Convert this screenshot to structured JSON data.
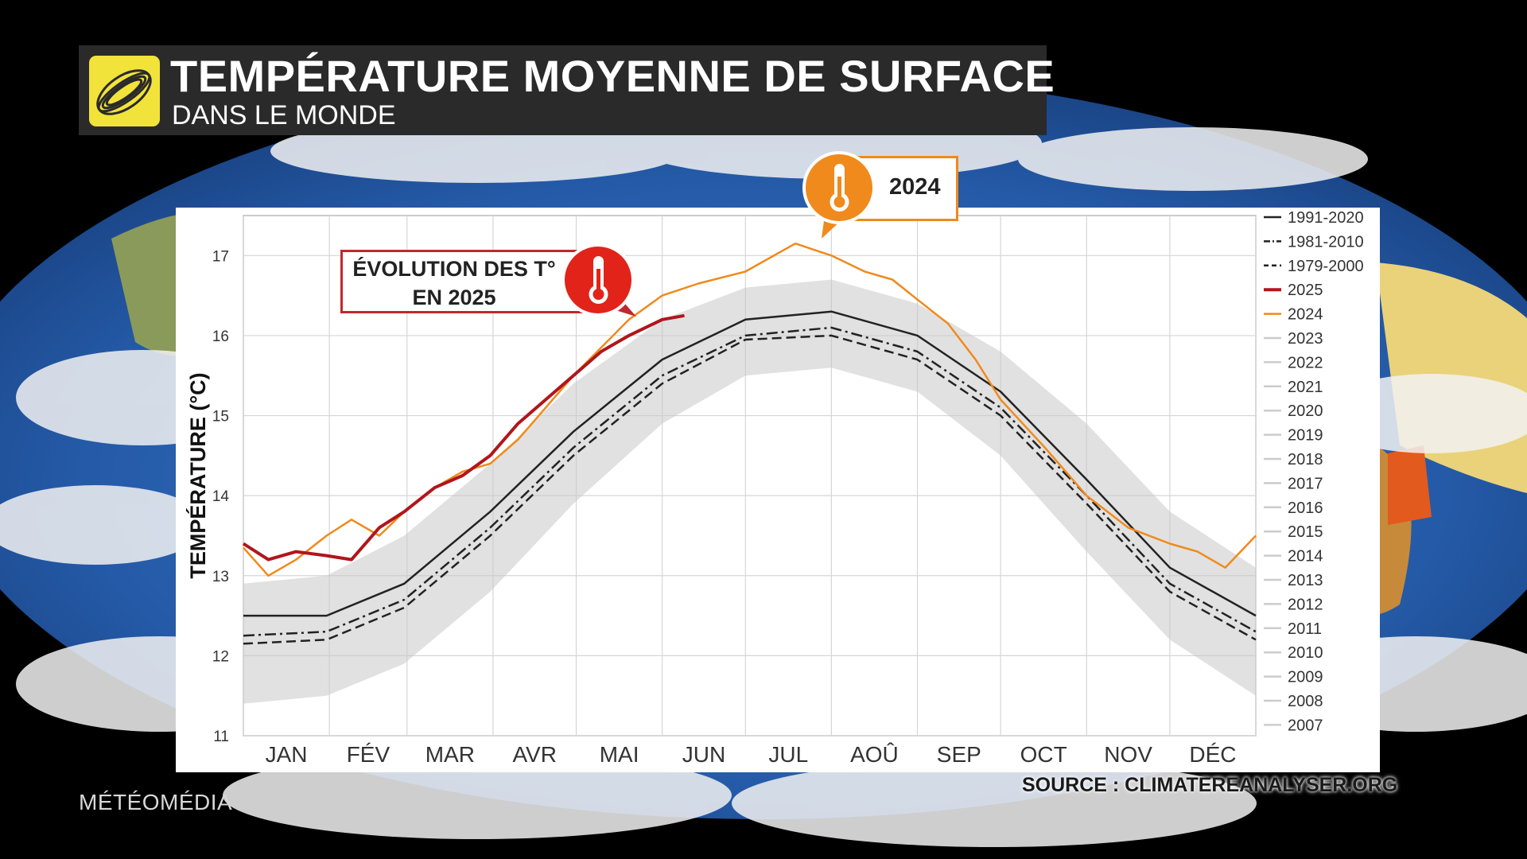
{
  "header": {
    "title": "TEMPÉRATURE MOYENNE DE SURFACE",
    "subtitle": "DANS LE MONDE",
    "logo_icon": "weather-network-swirl-logo",
    "logo_color": "#f2e33a"
  },
  "callouts": {
    "c2025_line1": "ÉVOLUTION DES T°",
    "c2025_line2": "EN 2025",
    "c2025_color": "#c0282d",
    "c2024_label": "2024",
    "c2024_color": "#f08a1c",
    "icon": "thermometer-icon"
  },
  "footer": {
    "source": "SOURCE : CLIMATEREANALYSER.ORG",
    "brand": "MÉTÉOMÉDIA"
  },
  "chart_data": {
    "type": "line",
    "title": "",
    "xlabel": "",
    "ylabel": "TEMPÉRATURE (°C)",
    "ylim": [
      11,
      17.5
    ],
    "yticks": [
      11,
      12,
      13,
      14,
      15,
      16,
      17
    ],
    "x_domain": [
      1,
      366
    ],
    "month_labels": [
      "JAN",
      "FÉV",
      "MAR",
      "AVR",
      "MAI",
      "JUN",
      "JUL",
      "AOÛ",
      "SEP",
      "OCT",
      "NOV",
      "DÉC"
    ],
    "grid": true,
    "legend_position": "right",
    "legend": [
      {
        "label": "1991-2020",
        "style": "solid",
        "color": "#222222"
      },
      {
        "label": "1981-2010",
        "style": "dashdot",
        "color": "#222222"
      },
      {
        "label": "1979-2000",
        "style": "dashed",
        "color": "#222222"
      },
      {
        "label": "2025",
        "style": "solid",
        "color": "#b0161b"
      },
      {
        "label": "2024",
        "style": "solid",
        "color": "#f08a1c"
      },
      {
        "label": "2023",
        "style": "solid",
        "color": "#cccccc"
      },
      {
        "label": "2022",
        "style": "solid",
        "color": "#cccccc"
      },
      {
        "label": "2021",
        "style": "solid",
        "color": "#cccccc"
      },
      {
        "label": "2020",
        "style": "solid",
        "color": "#cccccc"
      },
      {
        "label": "2019",
        "style": "solid",
        "color": "#cccccc"
      },
      {
        "label": "2018",
        "style": "solid",
        "color": "#cccccc"
      },
      {
        "label": "2017",
        "style": "solid",
        "color": "#cccccc"
      },
      {
        "label": "2016",
        "style": "solid",
        "color": "#cccccc"
      },
      {
        "label": "2015",
        "style": "solid",
        "color": "#cccccc"
      },
      {
        "label": "2014",
        "style": "solid",
        "color": "#cccccc"
      },
      {
        "label": "2013",
        "style": "solid",
        "color": "#cccccc"
      },
      {
        "label": "2012",
        "style": "solid",
        "color": "#cccccc"
      },
      {
        "label": "2011",
        "style": "solid",
        "color": "#cccccc"
      },
      {
        "label": "2010",
        "style": "solid",
        "color": "#cccccc"
      },
      {
        "label": "2009",
        "style": "solid",
        "color": "#cccccc"
      },
      {
        "label": "2008",
        "style": "solid",
        "color": "#cccccc"
      },
      {
        "label": "2007",
        "style": "solid",
        "color": "#cccccc"
      }
    ],
    "series": [
      {
        "name": "2025",
        "color": "#b0161b",
        "x": [
          1,
          10,
          20,
          31,
          40,
          50,
          59,
          70,
          80,
          90,
          100,
          110,
          120,
          130,
          140,
          152,
          160
        ],
        "y": [
          13.4,
          13.2,
          13.3,
          13.25,
          13.2,
          13.6,
          13.8,
          14.1,
          14.25,
          14.5,
          14.9,
          15.2,
          15.5,
          15.8,
          16.0,
          16.2,
          16.25
        ]
      },
      {
        "name": "2024",
        "color": "#f08a1c",
        "x": [
          1,
          10,
          20,
          31,
          40,
          50,
          59,
          70,
          80,
          90,
          100,
          110,
          120,
          130,
          140,
          152,
          165,
          182,
          200,
          213,
          225,
          235,
          244,
          255,
          265,
          274,
          290,
          305,
          320,
          335,
          345,
          355,
          366
        ],
        "y": [
          13.35,
          13.0,
          13.2,
          13.5,
          13.7,
          13.5,
          13.8,
          14.1,
          14.3,
          14.4,
          14.7,
          15.1,
          15.5,
          15.85,
          16.2,
          16.5,
          16.65,
          16.8,
          17.15,
          17.0,
          16.8,
          16.7,
          16.45,
          16.15,
          15.7,
          15.2,
          14.6,
          14.0,
          13.6,
          13.4,
          13.3,
          13.1,
          13.5
        ]
      },
      {
        "name": "1991-2020",
        "style": "solid",
        "x": [
          1,
          31,
          59,
          90,
          120,
          152,
          182,
          213,
          244,
          274,
          305,
          335,
          366
        ],
        "y": [
          12.5,
          12.5,
          12.9,
          13.8,
          14.8,
          15.7,
          16.2,
          16.3,
          16.0,
          15.3,
          14.2,
          13.1,
          12.5
        ]
      },
      {
        "name": "1981-2010",
        "style": "dashdot",
        "x": [
          1,
          31,
          59,
          90,
          120,
          152,
          182,
          213,
          244,
          274,
          305,
          335,
          366
        ],
        "y": [
          12.25,
          12.3,
          12.7,
          13.6,
          14.6,
          15.5,
          16.0,
          16.1,
          15.8,
          15.1,
          14.0,
          12.9,
          12.3
        ]
      },
      {
        "name": "1979-2000",
        "style": "dashed",
        "x": [
          1,
          31,
          59,
          90,
          120,
          152,
          182,
          213,
          244,
          274,
          305,
          335,
          366
        ],
        "y": [
          12.15,
          12.2,
          12.6,
          13.5,
          14.5,
          15.4,
          15.95,
          16.0,
          15.7,
          15.0,
          13.9,
          12.8,
          12.2
        ]
      }
    ],
    "historical_band": {
      "color": "#c8c8c8",
      "x": [
        1,
        31,
        59,
        90,
        120,
        152,
        182,
        213,
        244,
        274,
        305,
        335,
        366
      ],
      "low": [
        11.4,
        11.5,
        11.9,
        12.8,
        13.9,
        14.9,
        15.5,
        15.6,
        15.3,
        14.5,
        13.3,
        12.2,
        11.5
      ],
      "high": [
        12.9,
        13.0,
        13.5,
        14.4,
        15.4,
        16.2,
        16.6,
        16.7,
        16.4,
        15.8,
        14.9,
        13.8,
        13.1
      ]
    }
  }
}
